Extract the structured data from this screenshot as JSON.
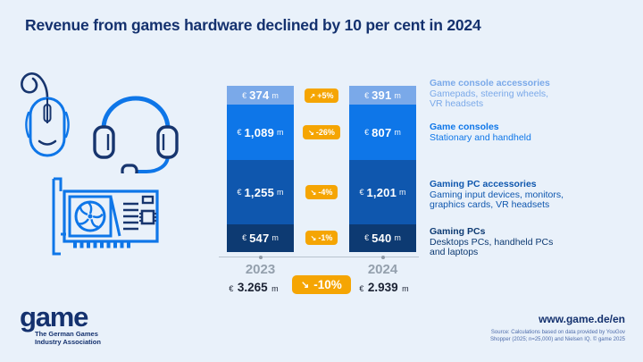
{
  "title": "Revenue from games hardware declined by 10 per cent in 2024",
  "colors": {
    "background": "#e9f1fa",
    "navy": "#14316e",
    "accent_orange": "#f5a503",
    "axis_gray": "#b9c3ce",
    "year_gray": "#94a0ad",
    "total_text": "#1b2233",
    "source_text": "#4e6cab",
    "icon_blue": "#0e76e8",
    "icon_navy": "#17356e"
  },
  "glyphs": {
    "arrow_up": "↗",
    "arrow_down": "↘",
    "currency": "€",
    "unit": "m"
  },
  "chart_data": {
    "type": "bar",
    "stacked": true,
    "unit": "€ million",
    "categories": [
      "2023",
      "2024"
    ],
    "series": [
      {
        "name": "Game console accessories",
        "color": "#7aa9e9",
        "values": [
          374,
          391
        ],
        "display": [
          "374",
          "391"
        ],
        "change": "+5%",
        "trend": "up"
      },
      {
        "name": "Game consoles",
        "color": "#0e76e8",
        "values": [
          1089,
          807
        ],
        "display": [
          "1,089",
          "807"
        ],
        "change": "-26%",
        "trend": "down"
      },
      {
        "name": "Gaming PC accessories",
        "color": "#0f57ae",
        "values": [
          1255,
          1201
        ],
        "display": [
          "1,255",
          "1,201"
        ],
        "change": "-4%",
        "trend": "down"
      },
      {
        "name": "Gaming PCs",
        "color": "#0d3a72",
        "values": [
          547,
          540
        ],
        "display": [
          "547",
          "540"
        ],
        "change": "-1%",
        "trend": "down"
      }
    ],
    "totals": {
      "values": [
        3265,
        2939
      ],
      "display": [
        "3.265",
        "2.939"
      ],
      "change": "-10%",
      "trend": "down"
    },
    "legend_position": "right",
    "grid": false
  },
  "legend": [
    {
      "title": "Game console accessories",
      "desc": [
        "Gamepads, steering wheels,",
        "VR headsets"
      ],
      "color": "#7aa9e9"
    },
    {
      "title": "Game consoles",
      "desc": [
        "Stationary and handheld"
      ],
      "color": "#0e76e8"
    },
    {
      "title": "Gaming PC accessories",
      "desc": [
        "Gaming input devices, monitors,",
        "graphics cards, VR headsets"
      ],
      "color": "#0f57ae"
    },
    {
      "title": "Gaming PCs",
      "desc": [
        "Desktops PCs, handheld PCs",
        "and laptops"
      ],
      "color": "#0d3a72"
    }
  ],
  "icons": [
    "computer-mouse",
    "gaming-headset",
    "graphics-card"
  ],
  "footer": {
    "logo_text": "game",
    "logo_tagline": [
      "The German Games",
      "Industry Association"
    ],
    "website": "www.game.de/en",
    "source": [
      "Source: Calculations based on data provided by YouGov",
      "Shopper (2025; n=25,000) and Nielsen IQ. © game 2025"
    ]
  }
}
